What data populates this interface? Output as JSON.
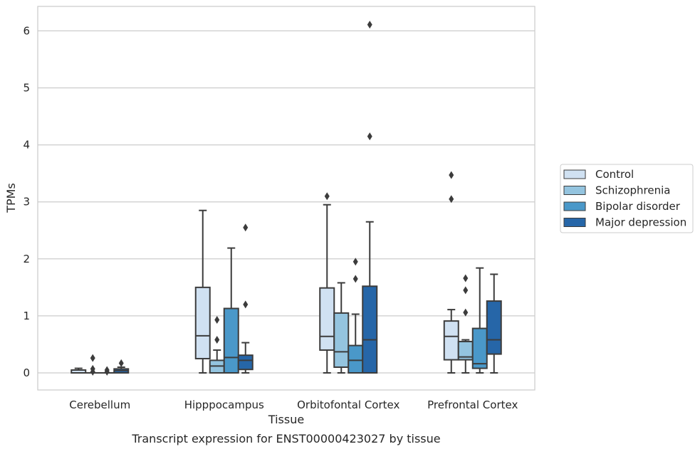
{
  "chart_data": {
    "type": "box",
    "title": "",
    "caption": "Transcript expression for ENST00000423027 by tissue",
    "xlabel": "Tissue",
    "ylabel": "TPMs",
    "ylim": [
      -0.3,
      6.42
    ],
    "yticks": [
      "0",
      "1",
      "2",
      "3",
      "4",
      "5",
      "6"
    ],
    "grid": "horizontal",
    "legend_position": "right",
    "categories": [
      "Cerebellum",
      "Hipppocampus",
      "Orbitofontal Cortex",
      "Prefrontal Cortex"
    ],
    "series": [
      {
        "name": "Control",
        "color": "#d0e1f2",
        "boxes": [
          {
            "whislo": 0.0,
            "q1": 0.0,
            "med": 0.0,
            "q3": 0.05,
            "whishi": 0.08,
            "fliers": []
          },
          {
            "whislo": 0.0,
            "q1": 0.25,
            "med": 0.65,
            "q3": 1.5,
            "whishi": 2.85,
            "fliers": []
          },
          {
            "whislo": 0.0,
            "q1": 0.4,
            "med": 0.64,
            "q3": 1.49,
            "whishi": 2.95,
            "fliers": [
              3.1
            ]
          },
          {
            "whislo": 0.0,
            "q1": 0.23,
            "med": 0.64,
            "q3": 0.91,
            "whishi": 1.11,
            "fliers": [
              3.05,
              3.47
            ]
          }
        ]
      },
      {
        "name": "Schizophrenia",
        "color": "#94c4df",
        "boxes": [
          {
            "whislo": 0.0,
            "q1": 0.0,
            "med": 0.0,
            "q3": 0.0,
            "whishi": 0.0,
            "fliers": [
              0.02,
              0.07,
              0.26
            ]
          },
          {
            "whislo": 0.0,
            "q1": 0.0,
            "med": 0.12,
            "q3": 0.22,
            "whishi": 0.4,
            "fliers": [
              0.58,
              0.93
            ]
          },
          {
            "whislo": 0.0,
            "q1": 0.1,
            "med": 0.37,
            "q3": 1.05,
            "whishi": 1.58,
            "fliers": []
          },
          {
            "whislo": 0.0,
            "q1": 0.23,
            "med": 0.28,
            "q3": 0.55,
            "whishi": 0.58,
            "fliers": [
              1.06,
              1.45,
              1.66
            ]
          }
        ]
      },
      {
        "name": "Bipolar disorder",
        "color": "#4a98c9",
        "boxes": [
          {
            "whislo": 0.0,
            "q1": 0.0,
            "med": 0.0,
            "q3": 0.0,
            "whishi": 0.0,
            "fliers": [
              0.02,
              0.05
            ]
          },
          {
            "whislo": 0.0,
            "q1": 0.0,
            "med": 0.27,
            "q3": 1.13,
            "whishi": 2.19,
            "fliers": []
          },
          {
            "whislo": 0.0,
            "q1": 0.0,
            "med": 0.22,
            "q3": 0.48,
            "whishi": 1.03,
            "fliers": [
              1.65,
              1.95
            ]
          },
          {
            "whislo": 0.0,
            "q1": 0.08,
            "med": 0.16,
            "q3": 0.78,
            "whishi": 1.84,
            "fliers": []
          }
        ]
      },
      {
        "name": "Major depression",
        "color": "#2666a8",
        "boxes": [
          {
            "whislo": 0.0,
            "q1": 0.0,
            "med": 0.04,
            "q3": 0.07,
            "whishi": 0.1,
            "fliers": [
              0.17
            ]
          },
          {
            "whislo": 0.0,
            "q1": 0.06,
            "med": 0.22,
            "q3": 0.31,
            "whishi": 0.53,
            "fliers": [
              1.2,
              2.55
            ]
          },
          {
            "whislo": 0.0,
            "q1": 0.0,
            "med": 0.58,
            "q3": 1.52,
            "whishi": 2.65,
            "fliers": [
              4.15,
              6.11
            ]
          },
          {
            "whislo": 0.0,
            "q1": 0.33,
            "med": 0.58,
            "q3": 1.26,
            "whishi": 1.73,
            "fliers": []
          }
        ]
      }
    ]
  }
}
